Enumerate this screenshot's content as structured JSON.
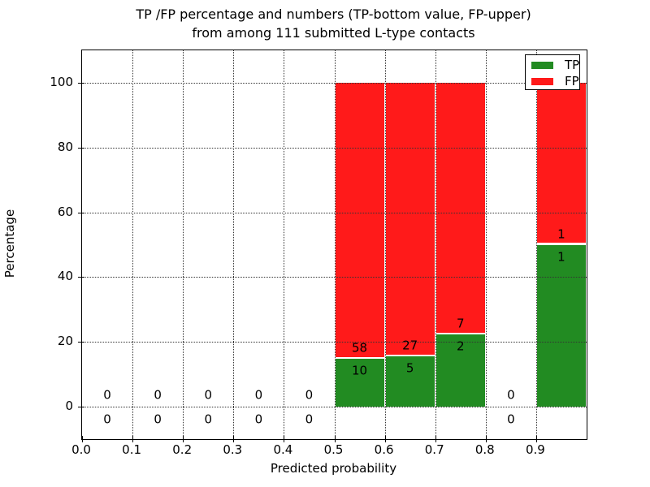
{
  "title": {
    "line1": "TP /FP percentage and numbers (TP-bottom value, FP-upper)",
    "line2": "from among 111 submitted L-type contacts"
  },
  "axes": {
    "xlabel": "Predicted probability",
    "ylabel": "Percentage"
  },
  "legend": {
    "entries": [
      {
        "label": "TP",
        "color": "#228b22"
      },
      {
        "label": "FP",
        "color": "#ff1a1a"
      }
    ]
  },
  "colors": {
    "tp": "#228b22",
    "fp": "#ff1a1a",
    "axis": "#000000",
    "grid": "#333333",
    "background": "#ffffff"
  },
  "chart_data": {
    "type": "bar",
    "stacked": true,
    "title": "TP /FP percentage and numbers (TP-bottom value, FP-upper)\nfrom among 111 submitted L-type contacts",
    "xlabel": "Predicted probability",
    "ylabel": "Percentage",
    "xlim": [
      0.0,
      1.0
    ],
    "ylim": [
      -10,
      110
    ],
    "x_ticks": [
      0.0,
      0.1,
      0.2,
      0.3,
      0.4,
      0.5,
      0.6,
      0.7,
      0.8,
      0.9
    ],
    "x_tick_labels": [
      "0.0",
      "0.1",
      "0.2",
      "0.3",
      "0.4",
      "0.5",
      "0.6",
      "0.7",
      "0.8",
      "0.9"
    ],
    "y_ticks": [
      0,
      20,
      40,
      60,
      80,
      100
    ],
    "grid": "dotted",
    "legend_position": "upper right",
    "total_contacts": 111,
    "series": [
      {
        "name": "TP",
        "color": "#228b22"
      },
      {
        "name": "FP",
        "color": "#ff1a1a"
      }
    ],
    "bins": [
      {
        "range": [
          0.0,
          0.1
        ],
        "tp": 0,
        "fp": 0
      },
      {
        "range": [
          0.1,
          0.2
        ],
        "tp": 0,
        "fp": 0
      },
      {
        "range": [
          0.2,
          0.3
        ],
        "tp": 0,
        "fp": 0
      },
      {
        "range": [
          0.3,
          0.4
        ],
        "tp": 0,
        "fp": 0
      },
      {
        "range": [
          0.4,
          0.5
        ],
        "tp": 0,
        "fp": 0
      },
      {
        "range": [
          0.5,
          0.6
        ],
        "tp": 10,
        "fp": 58,
        "tp_pct": 14.7,
        "fp_pct": 85.3
      },
      {
        "range": [
          0.6,
          0.7
        ],
        "tp": 5,
        "fp": 27,
        "tp_pct": 15.6,
        "fp_pct": 84.4
      },
      {
        "range": [
          0.7,
          0.8
        ],
        "tp": 2,
        "fp": 7,
        "tp_pct": 22.2,
        "fp_pct": 77.8
      },
      {
        "range": [
          0.8,
          0.9
        ],
        "tp": 0,
        "fp": 0
      },
      {
        "range": [
          0.9,
          1.0
        ],
        "tp": 1,
        "fp": 1,
        "tp_pct": 50.0,
        "fp_pct": 50.0
      }
    ]
  }
}
